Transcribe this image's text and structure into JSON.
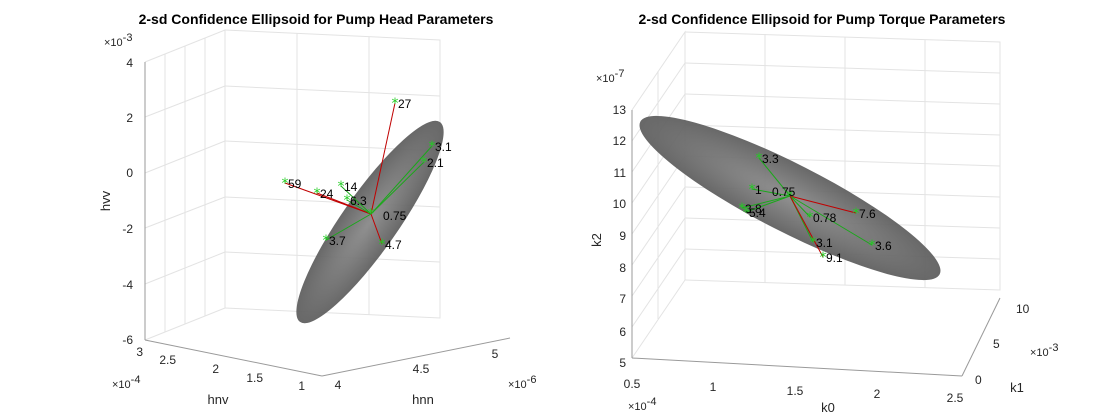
{
  "chart_data": [
    {
      "type": "scatter3d",
      "title": "2-sd Confidence Ellipsoid for Pump Head Parameters",
      "xlabel": "hnn",
      "ylabel": "hnv",
      "zlabel": "hvv",
      "x_exponent": "×10",
      "x_exponent_power": "-6",
      "y_exponent": "×10",
      "y_exponent_power": "-4",
      "z_exponent": "×10",
      "z_exponent_power": "-3",
      "x_ticks": [
        "4",
        "4.5",
        "5"
      ],
      "y_ticks": [
        "1",
        "1.5",
        "2",
        "2.5",
        "3"
      ],
      "z_ticks": [
        "-6",
        "-4",
        "-2",
        "0",
        "2",
        "4"
      ],
      "center_label": "0.75",
      "points": [
        {
          "label": "27",
          "color": "#c00000"
        },
        {
          "label": "3.1",
          "color": "#1aa81a"
        },
        {
          "label": "2.1",
          "color": "#1aa81a"
        },
        {
          "label": "59",
          "color": "#c00000"
        },
        {
          "label": "24",
          "color": "#c00000"
        },
        {
          "label": "14",
          "color": "#1aa81a"
        },
        {
          "label": "6.3",
          "color": "#1aa81a"
        },
        {
          "label": "3.7",
          "color": "#1aa81a"
        },
        {
          "label": "4.7",
          "color": "#c00000"
        }
      ]
    },
    {
      "type": "scatter3d",
      "title": "2-sd Confidence Ellipsoid for Pump Torque Parameters",
      "xlabel": "k0",
      "ylabel": "k1",
      "zlabel": "k2",
      "x_exponent": "×10",
      "x_exponent_power": "-4",
      "y_exponent": "×10",
      "y_exponent_power": "-3",
      "z_exponent": "×10",
      "z_exponent_power": "-7",
      "x_ticks": [
        "0.5",
        "1",
        "1.5",
        "2",
        "2.5"
      ],
      "y_ticks": [
        "0",
        "5",
        "10"
      ],
      "z_ticks": [
        "5",
        "6",
        "7",
        "8",
        "9",
        "10",
        "11",
        "12",
        "13"
      ],
      "center_label": "0.75",
      "points": [
        {
          "label": "3.3",
          "color": "#1aa81a"
        },
        {
          "label": "1",
          "color": "#1aa81a"
        },
        {
          "label": "3.8",
          "color": "#1aa81a"
        },
        {
          "label": "5.4",
          "color": "#1aa81a"
        },
        {
          "label": "0.78",
          "color": "#1aa81a"
        },
        {
          "label": "7.6",
          "color": "#c00000"
        },
        {
          "label": "3.1",
          "color": "#1aa81a"
        },
        {
          "label": "3.6",
          "color": "#1aa81a"
        },
        {
          "label": "9.1",
          "color": "#c00000"
        }
      ]
    }
  ],
  "colors": {
    "ellipsoid": "#6b6b6b",
    "marker": "#22cc22",
    "inside_line": "#1aa81a",
    "outside_line": "#c00000"
  }
}
